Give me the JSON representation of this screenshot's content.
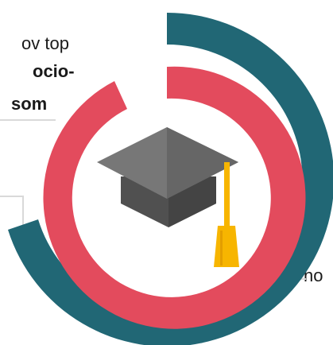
{
  "text": {
    "line1": "ov top",
    "line2": "ocio-",
    "line3": "som",
    "line4": "no"
  },
  "colors": {
    "outer_ring": "#216775",
    "inner_ring": "#e34b5d",
    "cap_top": "#777777",
    "cap_body": "#505050",
    "tassel": "#f7b500"
  },
  "icons": {
    "center": "graduation-cap-icon"
  }
}
